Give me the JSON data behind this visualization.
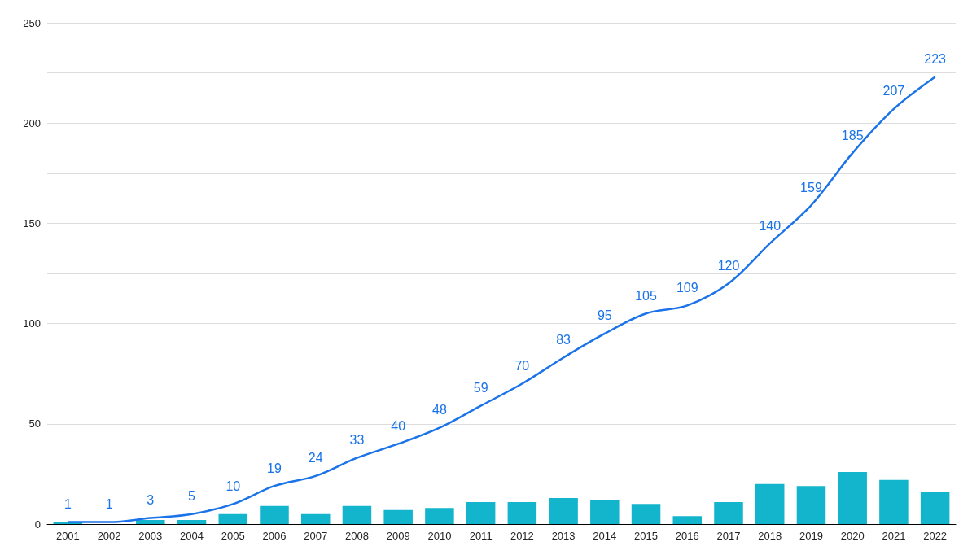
{
  "chart_data": {
    "type": "bar",
    "categories": [
      "2001",
      "2002",
      "2003",
      "2004",
      "2005",
      "2006",
      "2007",
      "2008",
      "2009",
      "2010",
      "2011",
      "2012",
      "2013",
      "2014",
      "2015",
      "2016",
      "2017",
      "2018",
      "2019",
      "2020",
      "2021",
      "2022"
    ],
    "series": [
      {
        "color": "#12b5cb",
        "values": [
          1,
          0,
          2,
          2,
          5,
          9,
          5,
          9,
          7,
          8,
          11,
          11,
          13,
          12,
          10,
          4,
          11,
          20,
          19,
          26,
          22,
          16
        ]
      },
      {
        "type": "line",
        "color": "#1a73e8",
        "data_labels": true,
        "values": [
          1,
          1,
          3,
          5,
          10,
          19,
          24,
          33,
          40,
          48,
          59,
          70,
          83,
          95,
          105,
          109,
          120,
          140,
          159,
          185,
          207,
          223
        ]
      }
    ],
    "ylim": [
      0,
      250
    ],
    "yticks": [
      0,
      {
        "value": 25,
        "label": null
      },
      50,
      {
        "value": 75,
        "label": null
      },
      100,
      {
        "value": 125,
        "label": null
      },
      150,
      {
        "value": 175,
        "label": null
      },
      200,
      {
        "value": 225,
        "label": null
      },
      250
    ],
    "grid": "y",
    "marker": "none",
    "line_style": "solid"
  }
}
